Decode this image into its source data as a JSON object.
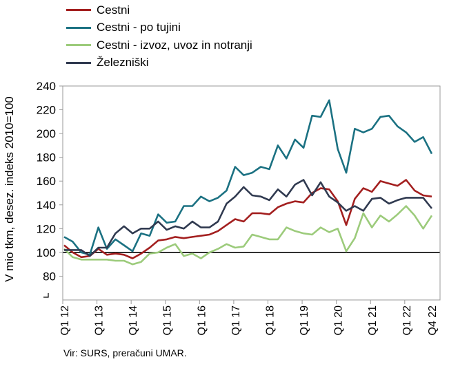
{
  "chart_data": {
    "type": "line",
    "ylabel": "V mio tkm, desez. indeks 2010=100",
    "ylim": [
      60,
      240
    ],
    "yticks": [
      80,
      100,
      120,
      140,
      160,
      180,
      200,
      220,
      240
    ],
    "reference_line": 100,
    "x_start": "Q1 12",
    "x_count": 44,
    "xtick_labels": [
      "Q1 12",
      "Q1 13",
      "Q1 14",
      "Q1 15",
      "Q1 16",
      "Q1 17",
      "Q1 18",
      "Q1 19",
      "Q1 20",
      "Q1 21",
      "Q1 22",
      "Q4 22"
    ],
    "legend": "top-left",
    "grid": false,
    "series": [
      {
        "name": "Cestni",
        "color": "#a31f1f",
        "values": [
          106,
          100,
          96,
          97,
          103,
          98,
          99,
          98,
          95,
          99,
          104,
          110,
          111,
          113,
          112,
          113,
          114,
          115,
          118,
          123,
          128,
          126,
          133,
          133,
          132,
          138,
          141,
          143,
          142,
          150,
          154,
          153,
          143,
          123,
          145,
          154,
          151,
          160,
          158,
          156,
          161,
          152,
          148,
          147
        ]
      },
      {
        "name": "Cestni - po tujini",
        "color": "#1b7182",
        "values": [
          113,
          109,
          100,
          98,
          121,
          103,
          111,
          106,
          101,
          116,
          114,
          132,
          125,
          126,
          139,
          139,
          147,
          143,
          146,
          152,
          172,
          165,
          167,
          172,
          170,
          190,
          179,
          195,
          188,
          215,
          214,
          228,
          187,
          167,
          204,
          201,
          204,
          214,
          215,
          206,
          201,
          193,
          197,
          183
        ]
      },
      {
        "name": "Cestni - izvoz, uvoz in notranji",
        "color": "#9ccb7b",
        "values": [
          103,
          96,
          94,
          94,
          94,
          94,
          93,
          93,
          90,
          92,
          99,
          100,
          104,
          107,
          97,
          99,
          95,
          100,
          103,
          107,
          104,
          105,
          115,
          113,
          111,
          111,
          121,
          118,
          116,
          115,
          121,
          117,
          120,
          101,
          112,
          133,
          121,
          131,
          126,
          132,
          139,
          131,
          120,
          131
        ]
      },
      {
        "name": "Železniški",
        "color": "#303a50",
        "values": [
          102,
          102,
          102,
          97,
          104,
          104,
          116,
          122,
          116,
          120,
          120,
          126,
          119,
          122,
          120,
          126,
          121,
          121,
          126,
          141,
          147,
          155,
          148,
          147,
          144,
          153,
          147,
          157,
          161,
          148,
          159,
          147,
          142,
          135,
          139,
          135,
          145,
          146,
          141,
          144,
          146,
          146,
          146,
          137
        ]
      }
    ]
  },
  "source": "Vir: SURS, preračuni UMAR."
}
